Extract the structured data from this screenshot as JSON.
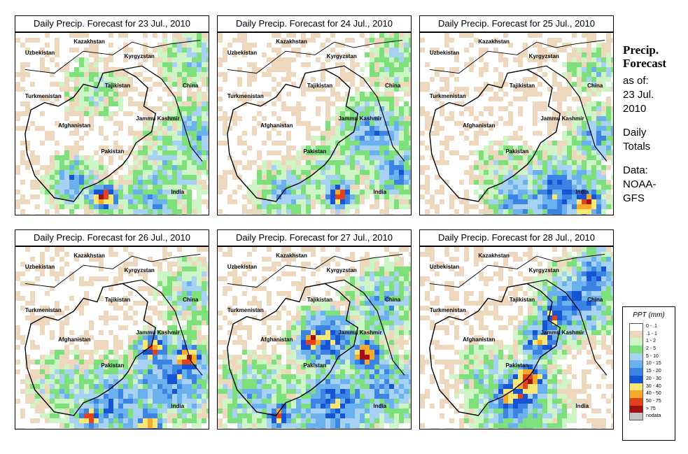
{
  "panels": [
    {
      "title": "Daily Precip. Forecast for  23 Jul., 2010",
      "day": 0
    },
    {
      "title": "Daily Precip. Forecast for  24 Jul., 2010",
      "day": 1
    },
    {
      "title": "Daily Precip. Forecast for  25 Jul., 2010",
      "day": 2
    },
    {
      "title": "Daily Precip. Forecast for  26 Jul., 2010",
      "day": 3
    },
    {
      "title": "Daily Precip. Forecast for  27 Jul., 2010",
      "day": 4
    },
    {
      "title": "Daily Precip. Forecast for  28 Jul., 2010",
      "day": 5
    }
  ],
  "map_labels": {
    "kazakhstan": "Kazakhstan",
    "uzbekistan": "Uzbekistan",
    "kyrgyzstan": "Kyrgyzstan",
    "tajikistan": "Tajikistan",
    "turkmenistan": "Turkmenistan",
    "china": "China",
    "jammu_kashmir": "Jammu Kashmir",
    "afghanistan": "Afghanistan",
    "pakistan": "Pakistan",
    "india": "India"
  },
  "side": {
    "title_line1": "Precip.",
    "title_line2": "Forecast",
    "asof_line1": "as of:",
    "asof_line2": "23 Jul.",
    "asof_line3": "2010",
    "totals_line1": "Daily",
    "totals_line2": "Totals",
    "data_line1": "Data:",
    "data_line2": "NOAA-",
    "data_line3": "GFS"
  },
  "legend": {
    "title": "PPT (mm)",
    "bins": [
      {
        "label": "0 - .1",
        "color": "#ffffff"
      },
      {
        "label": ".1 - 1",
        "color": "#eed8bd"
      },
      {
        "label": "1 - 2",
        "color": "#cdf5c5"
      },
      {
        "label": "2 - 5",
        "color": "#7ee07a"
      },
      {
        "label": "5 - 10",
        "color": "#a8d2f4"
      },
      {
        "label": "10 - 15",
        "color": "#6ab1ee"
      },
      {
        "label": "15 - 20",
        "color": "#3b84e4"
      },
      {
        "label": "20 - 30",
        "color": "#1654d6"
      },
      {
        "label": "30 - 40",
        "color": "#fbe774"
      },
      {
        "label": "40 - 50",
        "color": "#f7aa2a"
      },
      {
        "label": "50 - 75",
        "color": "#e3421e"
      },
      {
        "label": "> 75",
        "color": "#a01010"
      },
      {
        "label": "nodata",
        "color": "#c4c4c4"
      }
    ]
  }
}
